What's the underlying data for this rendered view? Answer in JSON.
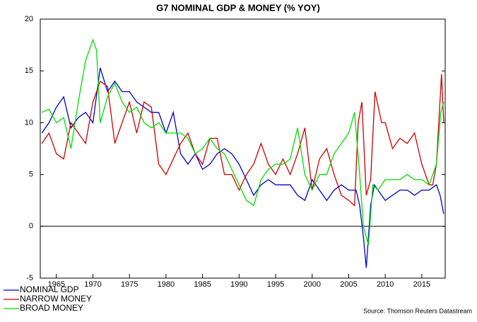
{
  "chart_data": {
    "type": "line",
    "title": "G7 NOMINAL GDP & MONEY (% YOY)",
    "source": "Source: Thomson Reuters Datastream",
    "xlim": [
      1962.8,
      2018.2
    ],
    "xticks": [
      1965,
      1970,
      1975,
      1980,
      1985,
      1990,
      1995,
      2000,
      2005,
      2010,
      2015
    ],
    "ylim": [
      -5,
      20
    ],
    "yticks": [
      -5,
      0,
      5,
      10,
      15,
      20
    ],
    "legend": "bottom-left",
    "series": [
      {
        "name": "NOMINAL GDP",
        "color": "#0000cc",
        "x": [
          1963,
          1964,
          1965,
          1966,
          1967,
          1968,
          1969,
          1970,
          1971,
          1972,
          1973,
          1974,
          1975,
          1976,
          1977,
          1978,
          1979,
          1980,
          1981,
          1982,
          1983,
          1984,
          1985,
          1986,
          1987,
          1988,
          1989,
          1990,
          1991,
          1992,
          1993,
          1994,
          1995,
          1996,
          1997,
          1998,
          1999,
          2000,
          2001,
          2002,
          2003,
          2004,
          2005,
          2006,
          2006.5,
          2007,
          2007.4,
          2008,
          2008.5,
          2009,
          2010,
          2011,
          2012,
          2013,
          2014,
          2015,
          2016,
          2017,
          2017.5,
          2018
        ],
        "values": [
          9,
          10,
          11.5,
          12.5,
          9.5,
          10.5,
          11,
          10,
          15.3,
          13,
          14,
          13,
          13,
          12,
          11.5,
          11,
          11,
          9,
          11,
          7,
          6,
          7,
          5.5,
          6,
          7,
          7.5,
          7,
          6,
          4.5,
          3,
          4,
          4.5,
          4,
          4,
          4,
          3,
          2.5,
          4.5,
          3.5,
          2.5,
          3.5,
          4,
          3.5,
          3.5,
          2,
          -1,
          -4,
          2,
          4,
          3.5,
          2.5,
          3,
          3.5,
          3.5,
          3,
          3.5,
          3.5,
          4,
          3,
          1.2
        ]
      },
      {
        "name": "NARROW MONEY",
        "color": "#cc0000",
        "x": [
          1963,
          1964,
          1965,
          1966,
          1967,
          1968,
          1969,
          1970,
          1971,
          1972,
          1973,
          1974,
          1975,
          1976,
          1977,
          1978,
          1979,
          1980,
          1981,
          1982,
          1983,
          1984,
          1985,
          1986,
          1987,
          1988,
          1989,
          1990,
          1991,
          1992,
          1993,
          1994,
          1995,
          1996,
          1997,
          1998,
          1999,
          2000,
          2001,
          2002,
          2003,
          2004,
          2005,
          2005.8,
          2006.3,
          2006.8,
          2007.4,
          2008,
          2008.6,
          2009.5,
          2010,
          2011,
          2012,
          2013,
          2014,
          2015,
          2016,
          2016.5,
          2017,
          2017.7,
          2018
        ],
        "values": [
          8,
          9,
          7,
          6.5,
          10,
          9,
          8,
          12,
          14,
          13.5,
          8,
          10,
          12,
          9,
          12,
          11.5,
          6,
          5,
          6.5,
          8,
          9,
          7,
          6,
          8.5,
          8.5,
          5,
          5,
          3.5,
          5,
          6,
          8,
          6,
          5,
          6.5,
          5,
          7,
          9.5,
          3.5,
          6.5,
          7.5,
          5,
          3,
          2.5,
          2,
          10,
          12,
          3,
          4.5,
          13,
          10,
          10,
          7.5,
          8.5,
          8,
          9,
          6,
          4,
          4,
          6,
          14.7,
          10
        ]
      },
      {
        "name": "BROAD MONEY",
        "color": "#00dd00",
        "x": [
          1963,
          1964,
          1965,
          1966,
          1967,
          1968,
          1969,
          1970,
          1970.5,
          1971,
          1972,
          1973,
          1974,
          1975,
          1976,
          1977,
          1978,
          1979,
          1980,
          1981,
          1982,
          1983,
          1984,
          1985,
          1986,
          1987,
          1988,
          1989,
          1990,
          1991,
          1992,
          1993,
          1994,
          1995,
          1996,
          1997,
          1998,
          1999,
          2000,
          2001,
          2002,
          2003,
          2004,
          2005,
          2005.8,
          2006.5,
          2007,
          2007.7,
          2008.3,
          2009,
          2010,
          2011,
          2012,
          2013,
          2014,
          2015,
          2016,
          2017,
          2017.6,
          2018
        ],
        "values": [
          11,
          11.3,
          10,
          10.5,
          7.5,
          12,
          16,
          18,
          17,
          10,
          12.5,
          13.8,
          12,
          11,
          11.5,
          10,
          9.5,
          10,
          9,
          9,
          9,
          8.5,
          7,
          7.5,
          8.5,
          7.5,
          7,
          5.5,
          4,
          2.5,
          2,
          4.5,
          5.5,
          6,
          6,
          6.5,
          9.5,
          5,
          3.5,
          5,
          5,
          7,
          8,
          9,
          11,
          5,
          0,
          -1.8,
          4,
          3.5,
          4.5,
          4.5,
          4.5,
          5,
          4.5,
          4.5,
          4,
          6,
          11,
          12
        ]
      }
    ]
  }
}
